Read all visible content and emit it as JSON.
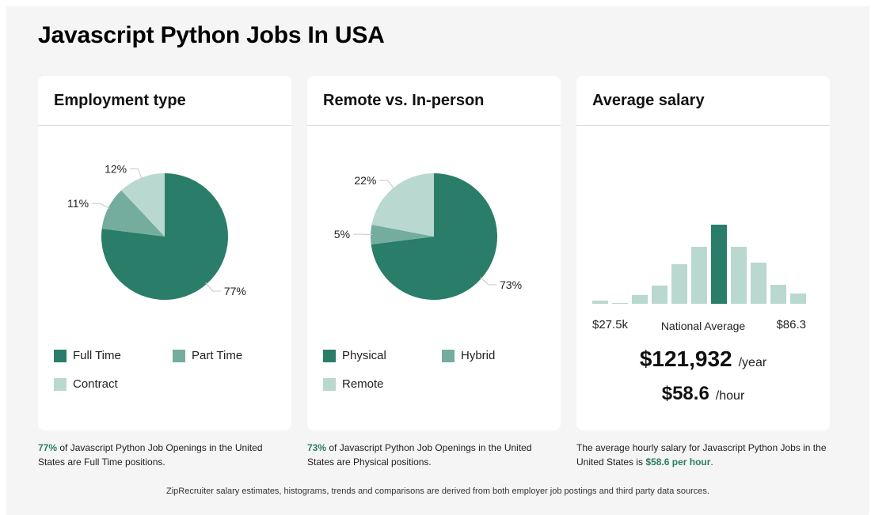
{
  "page": {
    "title": "Javascript Python Jobs In USA"
  },
  "colors": {
    "dark_green": "#2a7d69",
    "mid_green": "#74ad9d",
    "light_green": "#b9d8cf"
  },
  "employment": {
    "title": "Employment type",
    "legend": [
      "Full Time",
      "Part Time",
      "Contract"
    ],
    "caption": {
      "highlight": "77%",
      "text": " of Javascript Python Job Openings in the United States are Full Time positions."
    }
  },
  "remote": {
    "title": "Remote vs. In-person",
    "legend": [
      "Physical",
      "Hybrid",
      "Remote"
    ],
    "caption": {
      "highlight": "73%",
      "text": " of Javascript Python Job Openings in the United States are Physical positions."
    }
  },
  "salary": {
    "title": "Average salary",
    "range_low": "$27.5k",
    "range_high": "$86.3",
    "national_average_label": "National Average",
    "yearly": "$121,932",
    "yearly_unit": "/year",
    "hourly": "$58.6",
    "hourly_unit": "/hour",
    "caption": {
      "before": "The average hourly salary for Javascript Python Jobs in the United States is ",
      "highlight": "$58.6 per hour",
      "after": "."
    }
  },
  "footer": "ZipRecruiter salary estimates, histograms, trends and comparisons are derived from both employer job postings and third party data sources.",
  "chart_data": [
    {
      "type": "pie",
      "title": "Employment type",
      "categories": [
        "Full Time",
        "Part Time",
        "Contract"
      ],
      "values": [
        77,
        11,
        12
      ],
      "labels": [
        "77%",
        "11%",
        "12%"
      ]
    },
    {
      "type": "pie",
      "title": "Remote vs. In-person",
      "categories": [
        "Physical",
        "Hybrid",
        "Remote"
      ],
      "values": [
        73,
        5,
        22
      ],
      "labels": [
        "73%",
        "5%",
        "22%"
      ]
    },
    {
      "type": "bar",
      "title": "Average salary",
      "values": [
        4,
        1,
        11,
        23,
        50,
        72,
        100,
        72,
        52,
        24,
        13
      ],
      "highlight_index": 6,
      "range_labels": [
        "$27.5k",
        "$86.3"
      ]
    }
  ]
}
